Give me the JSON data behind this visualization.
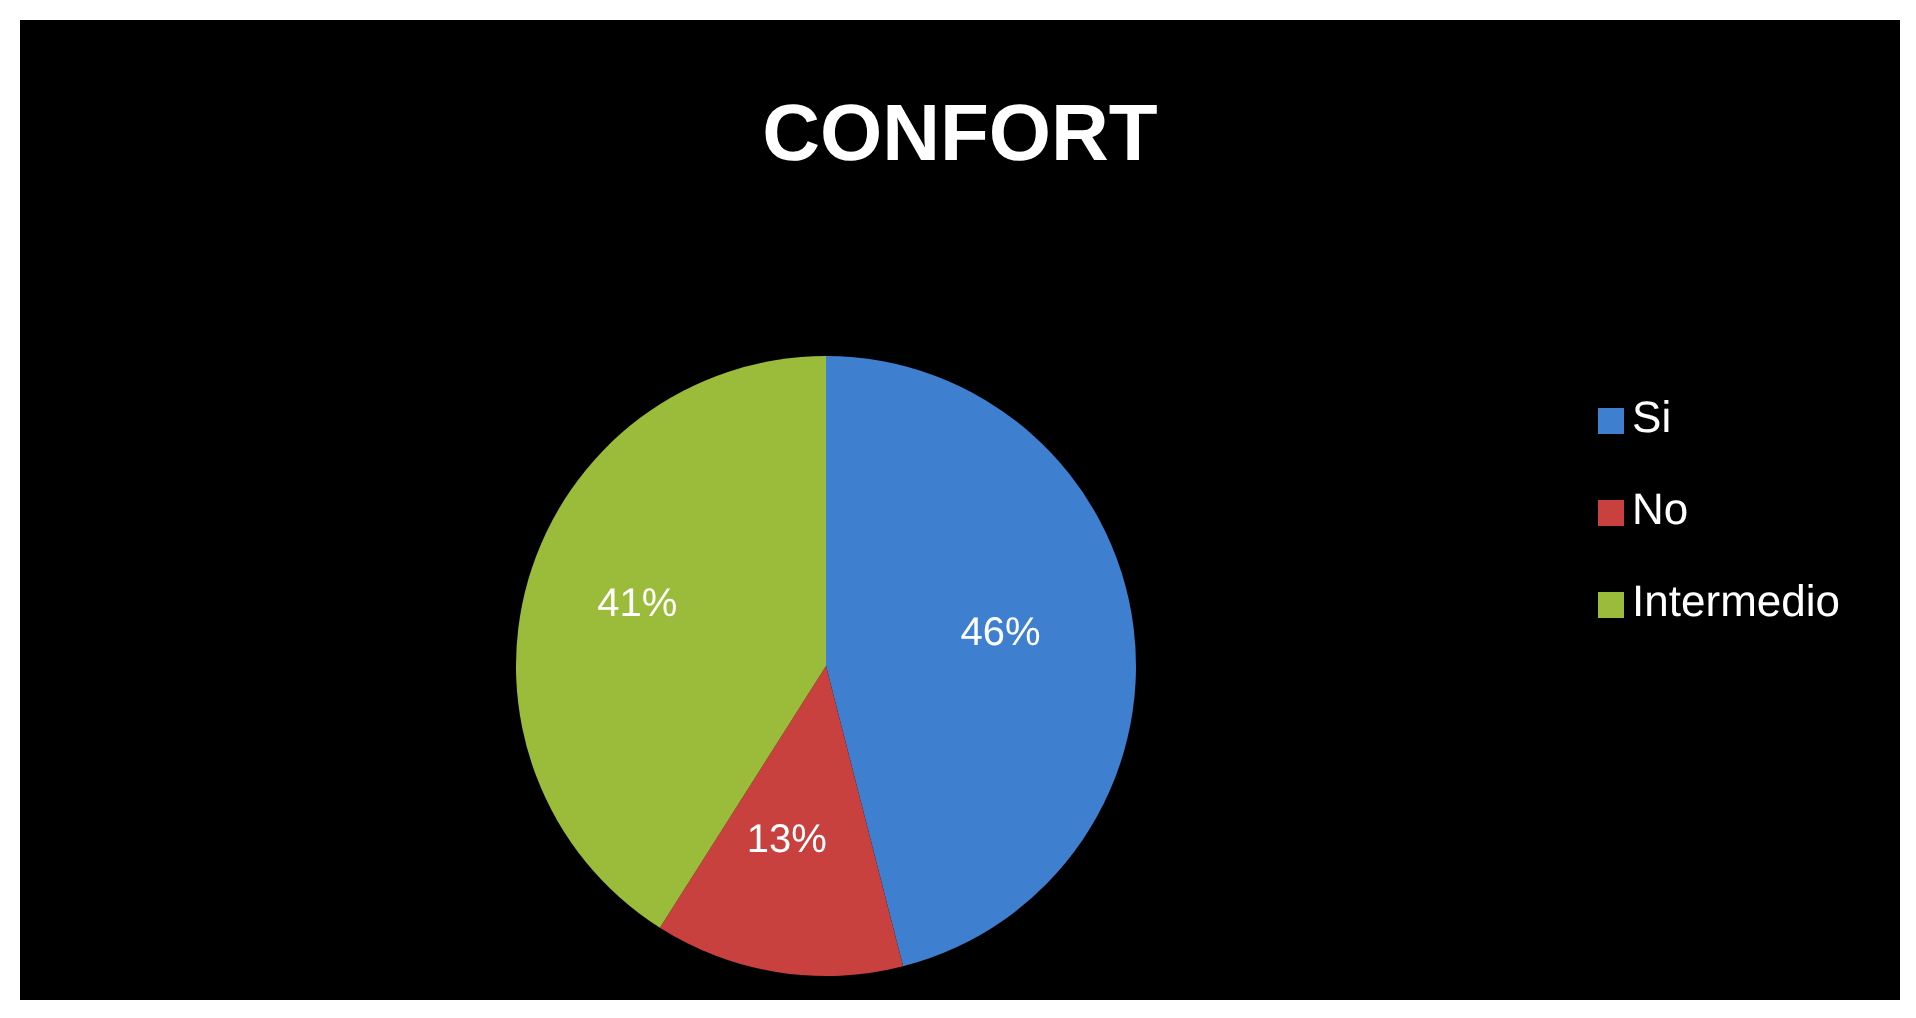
{
  "chart_data": {
    "type": "pie",
    "title": "CONFORT",
    "categories": [
      "Si",
      "No",
      "Intermedio"
    ],
    "values": [
      46,
      13,
      41
    ],
    "colors": [
      "#3f7fcf",
      "#c8413e",
      "#9bbb3a"
    ],
    "value_labels": [
      "46%",
      "13%",
      "41%"
    ],
    "legend": "right"
  }
}
